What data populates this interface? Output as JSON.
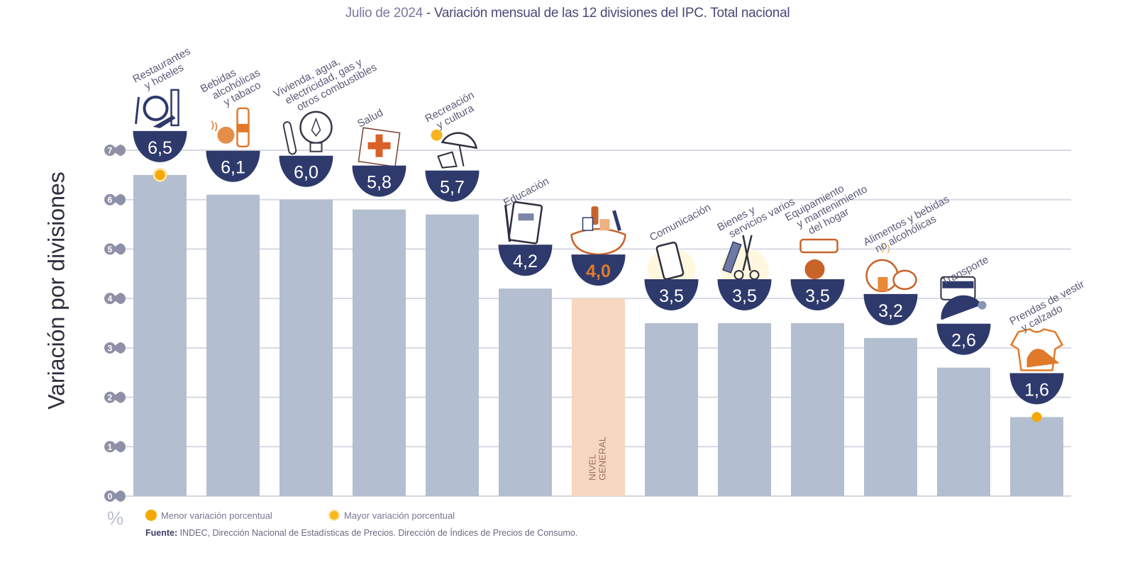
{
  "header": {
    "date": "Julio de 2024",
    "separator": " - ",
    "title": "Variación mensual de las 12 divisiones del IPC. Total nacional"
  },
  "axis": {
    "ylabel": "Variación por divisiones",
    "unit": "%"
  },
  "legend": {
    "menor": "Menor variación porcentual",
    "mayor": "Mayor variación porcentual"
  },
  "source": {
    "label": "Fuente:",
    "text": " INDEC, Dirección Nacional de Estadísticas de Precios. Dirección de Índices de Precios de Consumo."
  },
  "colors": {
    "bar": "#b3bfd0",
    "bar_general": "#f7d7c0",
    "bowl": "#2e3a6c",
    "highlight_dot": "#f5a800",
    "gridline": "#d7d9e3",
    "tick_pin": "#8f90a8",
    "accent_orange": "#e07a2a"
  },
  "chart_data": {
    "type": "bar",
    "title": "Julio de 2024 - Variación mensual de las 12 divisiones del IPC. Total nacional",
    "xlabel": "",
    "ylabel": "Variación por divisiones",
    "ylim": [
      0,
      7
    ],
    "yticks": [
      0,
      1,
      2,
      3,
      4,
      5,
      6,
      7
    ],
    "grid": true,
    "legend_position": "bottom-left",
    "categories": [
      {
        "lines": [
          "Restaurantes",
          "y hoteles"
        ],
        "icon": "restaurant-icon",
        "value_label": "6,5"
      },
      {
        "lines": [
          "Bebidas",
          "alcohólicas",
          "y tabaco"
        ],
        "icon": "bottle-icon",
        "value_label": "6,1"
      },
      {
        "lines": [
          "Vivienda, agua,",
          "electricidad, gas y",
          "otros combustibles"
        ],
        "icon": "lightbulb-icon",
        "value_label": "6,0"
      },
      {
        "lines": [
          "Salud"
        ],
        "icon": "first-aid-icon",
        "value_label": "5,8"
      },
      {
        "lines": [
          "Recreación",
          "y cultura"
        ],
        "icon": "beach-umbrella-icon",
        "value_label": "5,7"
      },
      {
        "lines": [
          "Educación"
        ],
        "icon": "notebook-icon",
        "value_label": "4,2"
      },
      {
        "lines": [],
        "icon": "shopping-basket-icon",
        "value_label": "4,0",
        "bar_text": [
          "NIVEL",
          "GENERAL"
        ]
      },
      {
        "lines": [
          "Comunicación"
        ],
        "icon": "smartphone-icon",
        "value_label": "3,5"
      },
      {
        "lines": [
          "Bienes y",
          "servicios varios"
        ],
        "icon": "comb-scissors-icon",
        "value_label": "3,5"
      },
      {
        "lines": [
          "Equipamiento",
          "y mantenimiento",
          "del hogar"
        ],
        "icon": "air-conditioner-icon",
        "value_label": "3,5"
      },
      {
        "lines": [
          "Alimentos y bebidas",
          "no alcohólicas"
        ],
        "icon": "chicken-icon",
        "value_label": "3,2"
      },
      {
        "lines": [
          "Transporte"
        ],
        "icon": "sube-card-icon",
        "value_label": "2,6"
      },
      {
        "lines": [
          "Prendas de vestir",
          "y calzado"
        ],
        "icon": "tshirt-shoe-icon",
        "value_label": "1,6"
      }
    ],
    "names": [
      "Restaurantes y hoteles",
      "Bebidas alcohólicas y tabaco",
      "Vivienda, agua, electricidad, gas y otros combustibles",
      "Salud",
      "Recreación y cultura",
      "Educación",
      "Nivel general",
      "Comunicación",
      "Bienes y servicios varios",
      "Equipamiento y mantenimiento del hogar",
      "Alimentos y bebidas no alcohólicas",
      "Transporte",
      "Prendas de vestir y calzado"
    ],
    "values": [
      6.5,
      6.1,
      6.0,
      5.8,
      5.7,
      4.2,
      4.0,
      3.5,
      3.5,
      3.5,
      3.2,
      2.6,
      1.6
    ],
    "general_index": 6,
    "max_index": 0,
    "min_index": 12
  }
}
